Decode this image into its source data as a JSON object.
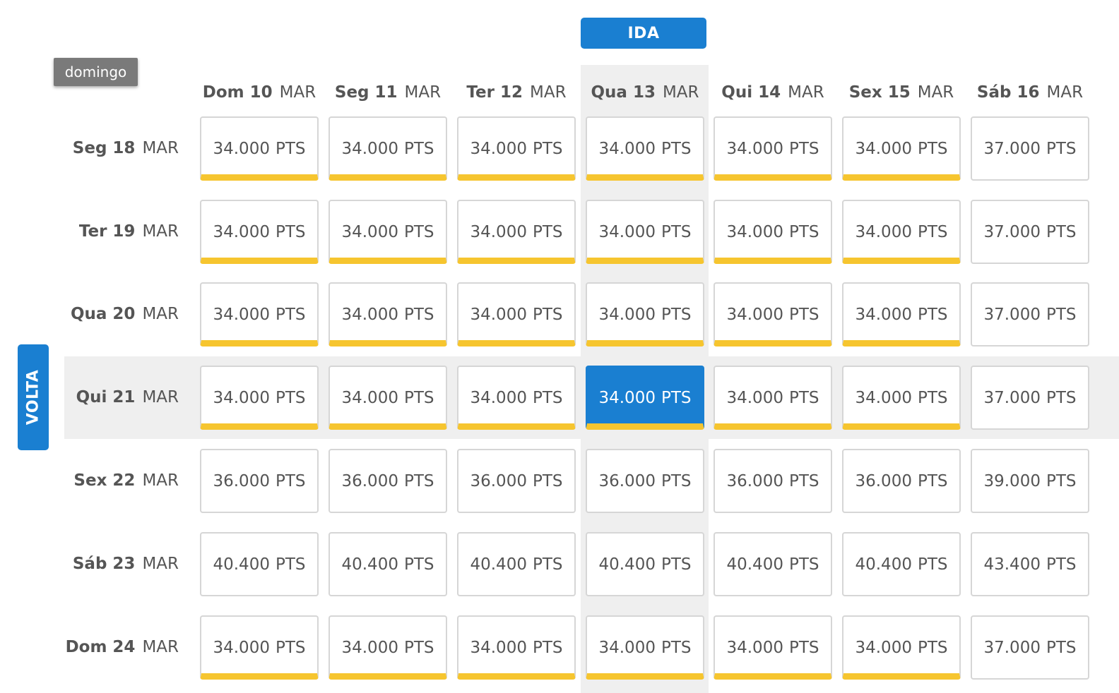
{
  "ida_label": "IDA",
  "volta_label": "VOLTA",
  "tooltip_text": "domingo",
  "columns": [
    {
      "day": "Dom 10",
      "month": "MAR"
    },
    {
      "day": "Seg 11",
      "month": "MAR"
    },
    {
      "day": "Ter 12",
      "month": "MAR"
    },
    {
      "day": "Qua 13",
      "month": "MAR"
    },
    {
      "day": "Qui 14",
      "month": "MAR"
    },
    {
      "day": "Sex 15",
      "month": "MAR"
    },
    {
      "day": "Sáb 16",
      "month": "MAR"
    }
  ],
  "rows": [
    {
      "day": "Seg 18",
      "month": "MAR"
    },
    {
      "day": "Ter 19",
      "month": "MAR"
    },
    {
      "day": "Qua 20",
      "month": "MAR"
    },
    {
      "day": "Qui 21",
      "month": "MAR"
    },
    {
      "day": "Sex 22",
      "month": "MAR"
    },
    {
      "day": "Sáb 23",
      "month": "MAR"
    },
    {
      "day": "Dom 24",
      "month": "MAR"
    }
  ],
  "points_unit": "PTS",
  "prices": [
    [
      "34.000",
      "34.000",
      "34.000",
      "34.000",
      "34.000",
      "34.000",
      "37.000"
    ],
    [
      "34.000",
      "34.000",
      "34.000",
      "34.000",
      "34.000",
      "34.000",
      "37.000"
    ],
    [
      "34.000",
      "34.000",
      "34.000",
      "34.000",
      "34.000",
      "34.000",
      "37.000"
    ],
    [
      "34.000",
      "34.000",
      "34.000",
      "34.000",
      "34.000",
      "34.000",
      "37.000"
    ],
    [
      "36.000",
      "36.000",
      "36.000",
      "36.000",
      "36.000",
      "36.000",
      "39.000"
    ],
    [
      "40.400",
      "40.400",
      "40.400",
      "40.400",
      "40.400",
      "40.400",
      "43.400"
    ],
    [
      "34.000",
      "34.000",
      "34.000",
      "34.000",
      "34.000",
      "34.000",
      "37.000"
    ]
  ],
  "cheapest_fare_marked": [
    [
      true,
      true,
      true,
      true,
      true,
      true,
      false
    ],
    [
      true,
      true,
      true,
      true,
      true,
      true,
      false
    ],
    [
      true,
      true,
      true,
      true,
      true,
      true,
      false
    ],
    [
      true,
      true,
      true,
      true,
      true,
      true,
      false
    ],
    [
      false,
      false,
      false,
      false,
      false,
      false,
      false
    ],
    [
      false,
      false,
      false,
      false,
      false,
      false,
      false
    ],
    [
      true,
      true,
      true,
      true,
      true,
      true,
      false
    ]
  ],
  "selected_column_index": 3,
  "selected_row_index": 3,
  "colors": {
    "accent_blue": "#1a7fd1",
    "highlight_yellow": "#f6c52f",
    "highlight_gray": "#efefef",
    "tooltip_gray": "#7a7a7a"
  }
}
